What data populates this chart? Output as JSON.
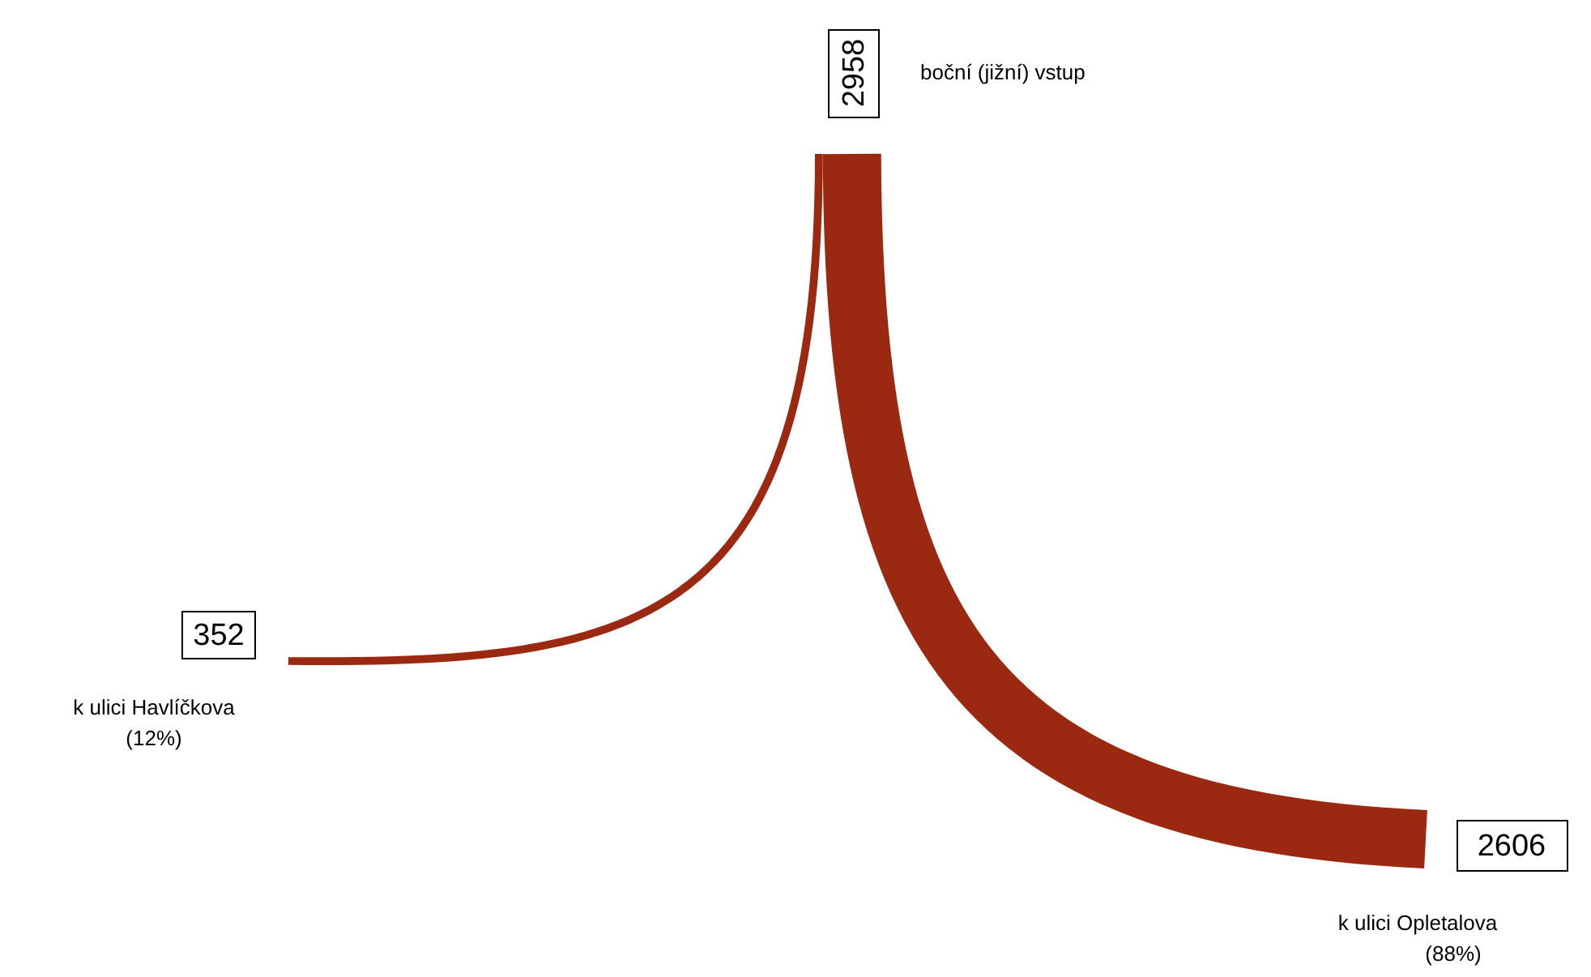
{
  "chart_data": {
    "type": "other",
    "categories": [
      "boční (jižní) vstup",
      "k ulici Havlíčkova",
      "k ulici Opletalova"
    ],
    "values": [
      2958,
      352,
      2606
    ],
    "color": "#9b2810",
    "data_labels": true,
    "annotations": [
      null,
      "(12%)",
      "(88%)"
    ]
  }
}
